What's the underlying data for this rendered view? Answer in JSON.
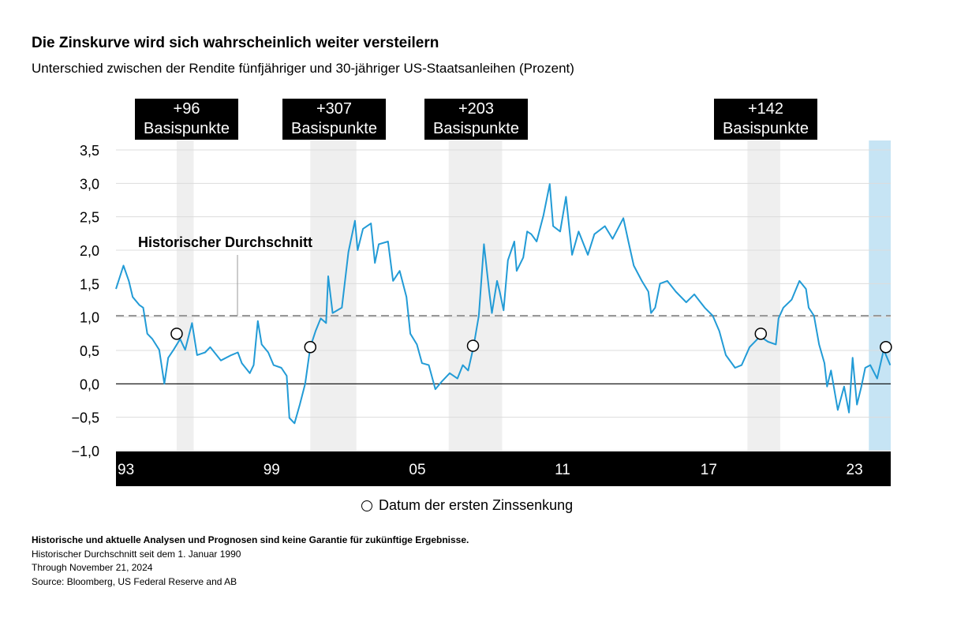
{
  "title": "Die Zinskurve wird sich wahrscheinlich weiter versteilern",
  "subtitle": "Unterschied zwischen der Rendite fünfjähriger und 30-jähriger US-Staatsanleihen (Prozent)",
  "annotations": [
    {
      "value": "+96",
      "label": "Basispunkte"
    },
    {
      "value": "+307",
      "label": "Basispunkte"
    },
    {
      "value": "+203",
      "label": "Basispunkte"
    },
    {
      "value": "+142",
      "label": "Basispunkte"
    }
  ],
  "legend": {
    "marker_label": "Datum der ersten Zinssenkung"
  },
  "footer": {
    "disclaimer": "Historische und aktuelle Analysen und Prognosen sind keine Garantie für zukünftige Ergebnisse.",
    "note1": "Historischer Durchschnitt seit dem 1. Januar 1990",
    "note2": "Through November 21, 2024",
    "source": "Source: Bloomberg, US Federal Reserve and AB"
  },
  "colors": {
    "line": "#229bd6",
    "band": "#efefef",
    "current_band": "#c6e4f4",
    "average": "#999999",
    "axis_band": "#000000"
  },
  "chart_data": {
    "type": "line",
    "xlim": [
      1993,
      2024.9
    ],
    "ylim": [
      -1.0,
      3.5
    ],
    "yticks": [
      -1.0,
      -0.5,
      0.0,
      0.5,
      1.0,
      1.5,
      2.0,
      2.5,
      3.0,
      3.5
    ],
    "ytick_labels": [
      "−1,0",
      "−0,5",
      "0,0",
      "0,5",
      "1,0",
      "1,5",
      "2,0",
      "2,5",
      "3,0",
      "3,5"
    ],
    "xticks": [
      1993,
      1999,
      2005,
      2011,
      2017,
      2023
    ],
    "xtick_labels": [
      "93",
      "99",
      "05",
      "11",
      "17",
      "23"
    ],
    "grid": true,
    "average": {
      "label": "Historischer Durchschnitt",
      "value": 1.02
    },
    "shaded_periods": [
      [
        1995.5,
        1996.2
      ],
      [
        2001.0,
        2002.9
      ],
      [
        2006.7,
        2008.9
      ],
      [
        2019.0,
        2020.35
      ]
    ],
    "current_period": [
      2024.0,
      2024.9
    ],
    "first_cut_points": [
      {
        "x": 1995.5,
        "y": 0.75
      },
      {
        "x": 2001.0,
        "y": 0.55
      },
      {
        "x": 2007.7,
        "y": 0.57
      },
      {
        "x": 2019.55,
        "y": 0.75
      },
      {
        "x": 2024.7,
        "y": 0.55
      }
    ],
    "series": [
      {
        "x": [
          1993.0,
          1993.31,
          1993.53,
          1993.69,
          1993.96,
          1994.12,
          1994.29,
          1994.5,
          1994.78,
          1994.99,
          1995.15,
          1995.37,
          1995.64,
          1995.85,
          1996.13,
          1996.34,
          1996.67,
          1996.88,
          1997.32,
          1997.75,
          1998.02,
          1998.18,
          1998.51,
          1998.67,
          1998.84,
          1999.0,
          1999.27,
          1999.49,
          1999.81,
          2000.03,
          2000.14,
          2000.35,
          2000.57,
          2000.79,
          2001.0,
          2001.22,
          2001.43,
          2001.65,
          2001.74,
          2001.92,
          2002.3,
          2002.57,
          2002.84,
          2002.95,
          2003.17,
          2003.5,
          2003.66,
          2003.82,
          2004.2,
          2004.41,
          2004.68,
          2004.96,
          2005.12,
          2005.39,
          2005.6,
          2005.88,
          2006.15,
          2006.43,
          2006.74,
          2007.06,
          2007.28,
          2007.5,
          2007.72,
          2007.94,
          2008.15,
          2008.37,
          2008.48,
          2008.69,
          2008.8,
          2008.96,
          2009.14,
          2009.4,
          2009.5,
          2009.77,
          2009.93,
          2010.1,
          2010.32,
          2010.6,
          2010.86,
          2011.0,
          2011.29,
          2011.53,
          2011.78,
          2012.05,
          2012.43,
          2012.7,
          2013.13,
          2013.45,
          2013.89,
          2014.1,
          2014.32,
          2014.65,
          2014.92,
          2015.03,
          2015.2,
          2015.4,
          2015.7,
          2016.05,
          2016.48,
          2016.81,
          2017.24,
          2017.57,
          2017.84,
          2018.11,
          2018.49,
          2018.76,
          2019.09,
          2019.52,
          2019.85,
          2020.17,
          2020.28,
          2020.48,
          2020.82,
          2021.14,
          2021.41,
          2021.52,
          2021.74,
          2021.95,
          2022.17,
          2022.28,
          2022.44,
          2022.72,
          2022.98,
          2023.18,
          2023.33,
          2023.51,
          2023.69,
          2023.85,
          2024.06,
          2024.34,
          2024.61,
          2024.88
        ],
        "y": [
          1.42,
          1.77,
          1.54,
          1.3,
          1.18,
          1.14,
          0.75,
          0.67,
          0.51,
          0.0,
          0.39,
          0.51,
          0.67,
          0.51,
          0.91,
          0.43,
          0.47,
          0.55,
          0.35,
          0.43,
          0.47,
          0.31,
          0.16,
          0.28,
          0.94,
          0.59,
          0.47,
          0.28,
          0.24,
          0.12,
          -0.51,
          -0.59,
          -0.31,
          0.0,
          0.55,
          0.79,
          0.98,
          0.91,
          1.61,
          1.06,
          1.14,
          1.97,
          2.44,
          2.0,
          2.32,
          2.4,
          1.81,
          2.09,
          2.13,
          1.54,
          1.69,
          1.3,
          0.75,
          0.59,
          0.31,
          0.28,
          -0.08,
          0.04,
          0.16,
          0.08,
          0.28,
          0.2,
          0.55,
          1.02,
          2.09,
          1.38,
          1.06,
          1.54,
          1.38,
          1.1,
          1.85,
          2.13,
          1.69,
          1.89,
          2.28,
          2.24,
          2.13,
          2.52,
          2.99,
          2.36,
          2.28,
          2.8,
          1.93,
          2.28,
          1.93,
          2.24,
          2.36,
          2.17,
          2.48,
          2.13,
          1.77,
          1.54,
          1.38,
          1.06,
          1.14,
          1.5,
          1.54,
          1.38,
          1.22,
          1.34,
          1.14,
          1.02,
          0.79,
          0.43,
          0.24,
          0.28,
          0.55,
          0.71,
          0.63,
          0.59,
          0.98,
          1.14,
          1.26,
          1.54,
          1.42,
          1.14,
          1.02,
          0.59,
          0.31,
          -0.04,
          0.2,
          -0.39,
          -0.04,
          -0.43,
          0.39,
          -0.31,
          -0.04,
          0.24,
          0.28,
          0.08,
          0.51,
          0.28
        ]
      }
    ]
  }
}
